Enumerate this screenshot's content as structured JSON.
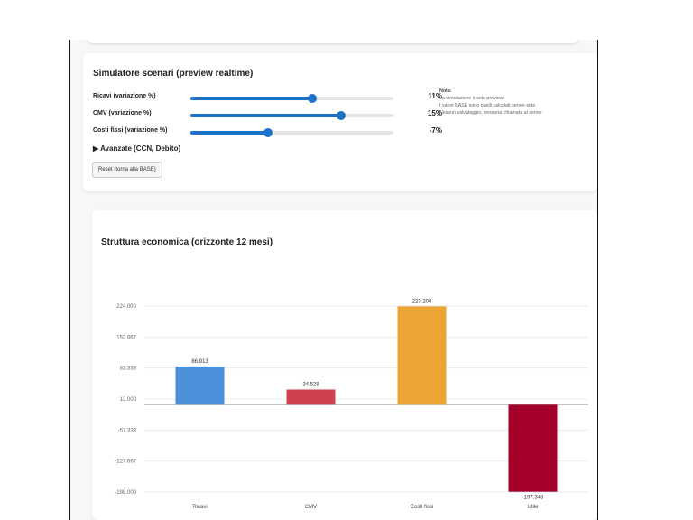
{
  "simulator": {
    "title": "Simulatore scenari (preview realtime)",
    "sliders": [
      {
        "label": "Ricavi (variazione %)",
        "value_text": "11%",
        "fraction": 0.6
      },
      {
        "label": "CMV (variazione %)",
        "value_text": "15%",
        "fraction": 0.74
      },
      {
        "label": "Costi fissi (variazione %)",
        "value_text": "-7%",
        "fraction": 0.38
      }
    ],
    "note": {
      "title": "Nota:",
      "lines": [
        "La simulazione è solo preview.",
        "I valori BASE sono quelli calcolati server-side.",
        "Nessun salvataggio, nessuna chiamata al server."
      ]
    },
    "advanced_label": "▶ Avanzate (CCN, Debito)",
    "reset_label": "Reset (torna alla BASE)"
  },
  "chart_section": {
    "title": "Struttura economica (orizzonte 12 mesi)"
  },
  "chart_data": {
    "type": "bar",
    "title": "Struttura economica (orizzonte 12 mesi)",
    "categories": [
      "Ricavi",
      "CMV",
      "Costi fissi",
      "Utile"
    ],
    "values": [
      86913,
      34528,
      223200,
      -197348
    ],
    "value_labels": [
      "86.913",
      "34.528",
      "223.200",
      "-197.348"
    ],
    "colors": [
      "#4a90d9",
      "#d0414e",
      "#eba534",
      "#a3002a"
    ],
    "yticks": [
      224000,
      153667,
      83333,
      13000,
      -57333,
      -127667,
      -198000
    ],
    "ytick_labels": [
      "224.000",
      "153.667",
      "83.333",
      "13.000",
      "-57.333",
      "-127.667",
      "-198.000"
    ],
    "ylim": [
      -198000,
      224000
    ],
    "baseline": 0,
    "xlabel": "",
    "ylabel": "",
    "grid": true
  }
}
